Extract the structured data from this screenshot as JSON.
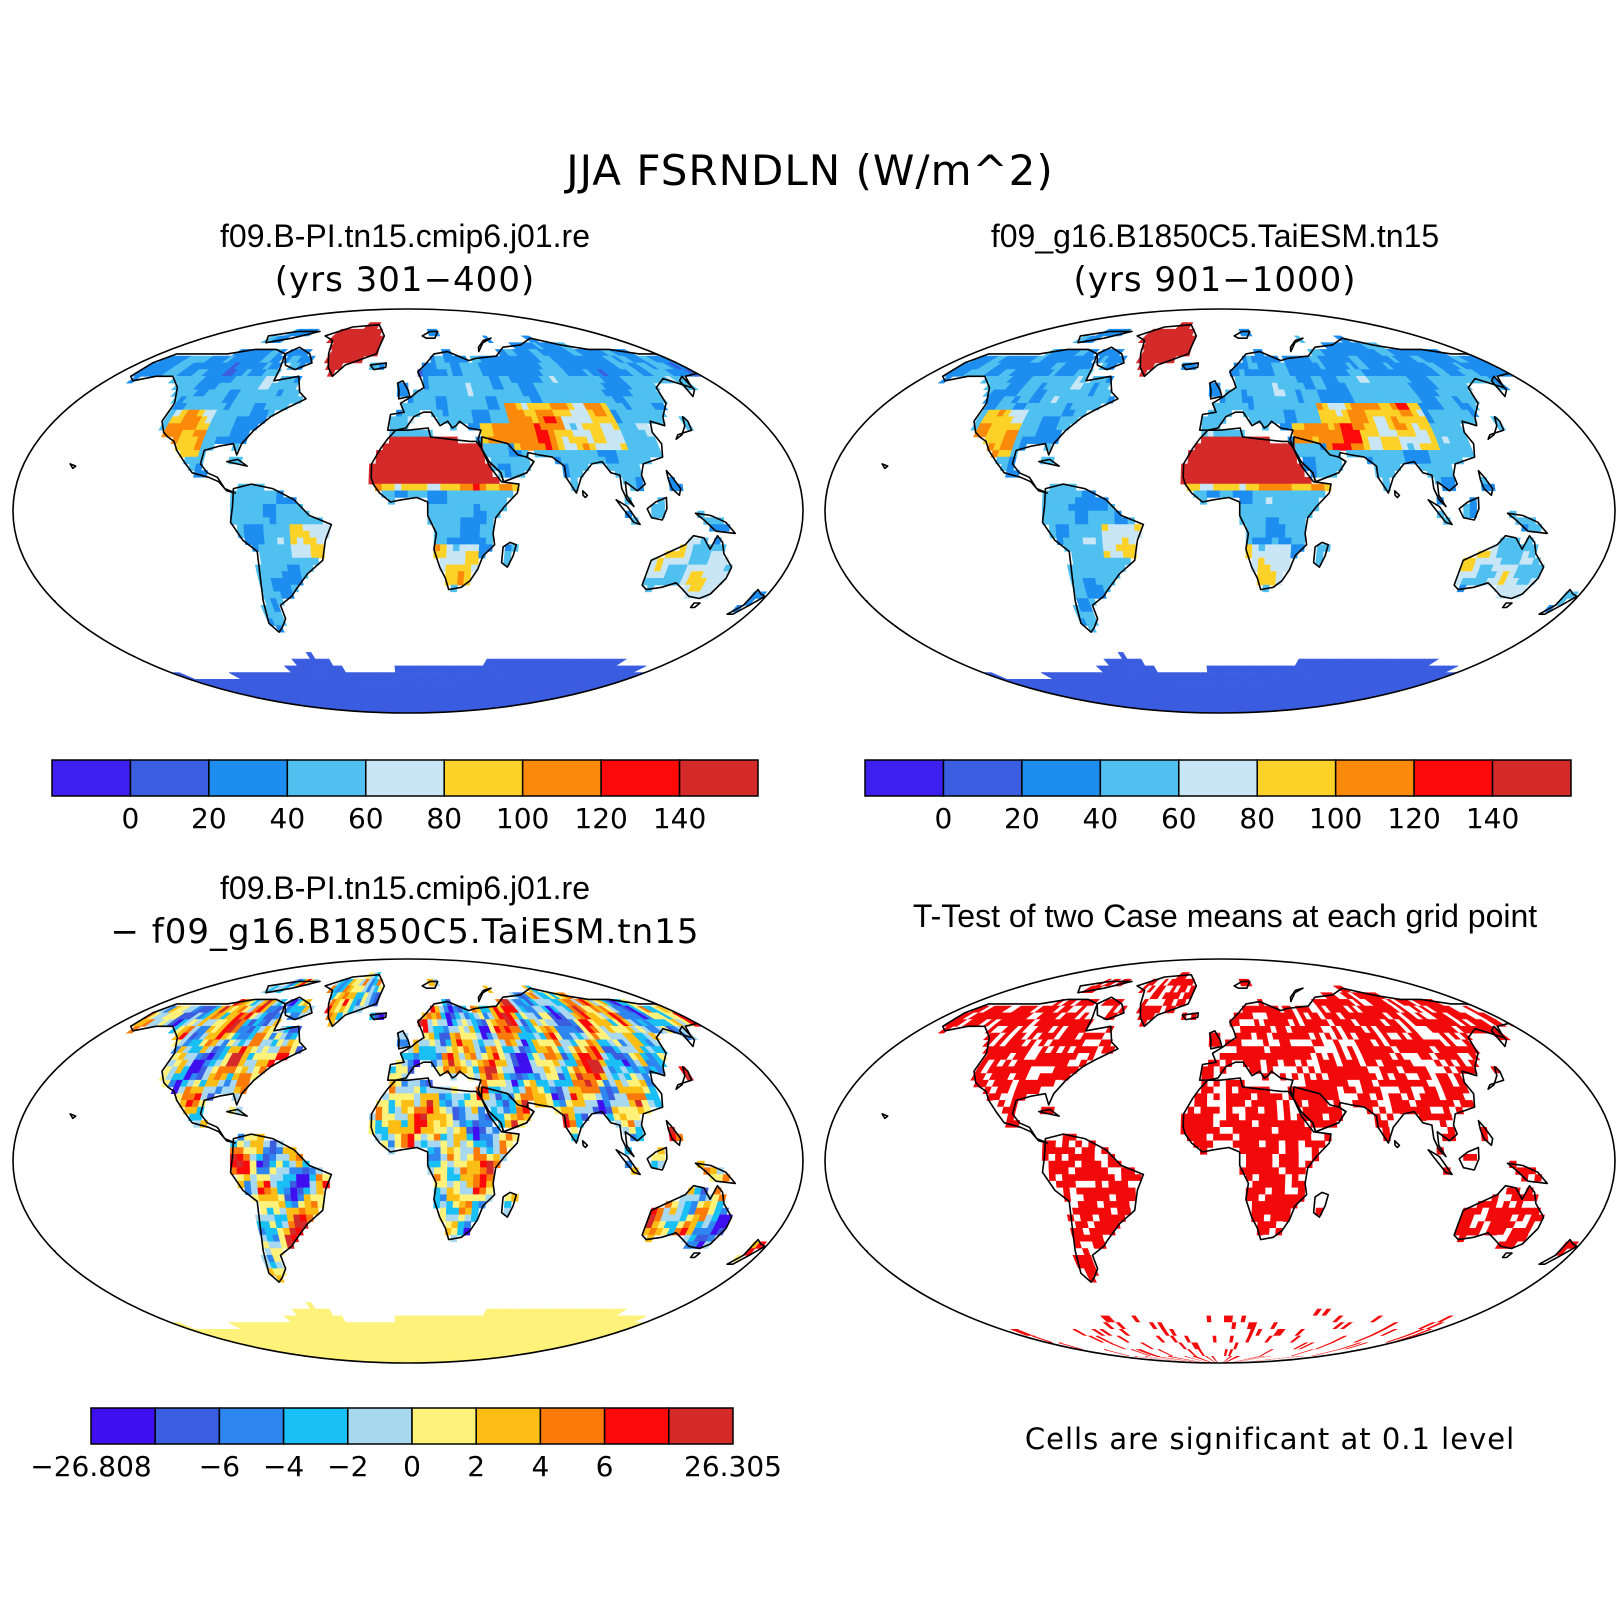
{
  "title": "JJA FSRNDLN (W/m^2)",
  "panels": [
    {
      "title": "f09.B-PI.tn15.cmip6.j01.re",
      "subtitle": "(yrs 301−400)",
      "kind": "field"
    },
    {
      "title": "f09_g16.B1850C5.TaiESM.tn15",
      "subtitle": "(yrs 901−1000)",
      "kind": "field"
    },
    {
      "title": "f09.B-PI.tn15.cmip6.j01.re",
      "subtitle": "− f09_g16.B1850C5.TaiESM.tn15",
      "kind": "difference"
    },
    {
      "title": "T-Test of two Case means at each grid point",
      "subtitle": "",
      "kind": "significance"
    }
  ],
  "colorbar_field": {
    "colors": [
      "#3f1ff0",
      "#3b5de0",
      "#1d8ef0",
      "#4fc0f0",
      "#c8e6f5",
      "#fdd228",
      "#fc8a0a",
      "#fc0a0a",
      "#d42a2a"
    ],
    "labels": [
      "0",
      "20",
      "40",
      "60",
      "80",
      "100",
      "120",
      "140"
    ]
  },
  "colorbar_diff": {
    "colors": [
      "#3f0ff0",
      "#3b5de0",
      "#2e86f0",
      "#18c0f5",
      "#a8d8f0",
      "#fff27a",
      "#fcbe15",
      "#fc7a0a",
      "#fc0a0a",
      "#d42a2a"
    ],
    "labels": [
      "−26.808",
      "−6",
      "−4",
      "−2",
      "0",
      "2",
      "4",
      "6",
      "26.305"
    ]
  },
  "significance_note": "Cells are significant at 0.1 level",
  "significance_color": "#f20a0a"
}
